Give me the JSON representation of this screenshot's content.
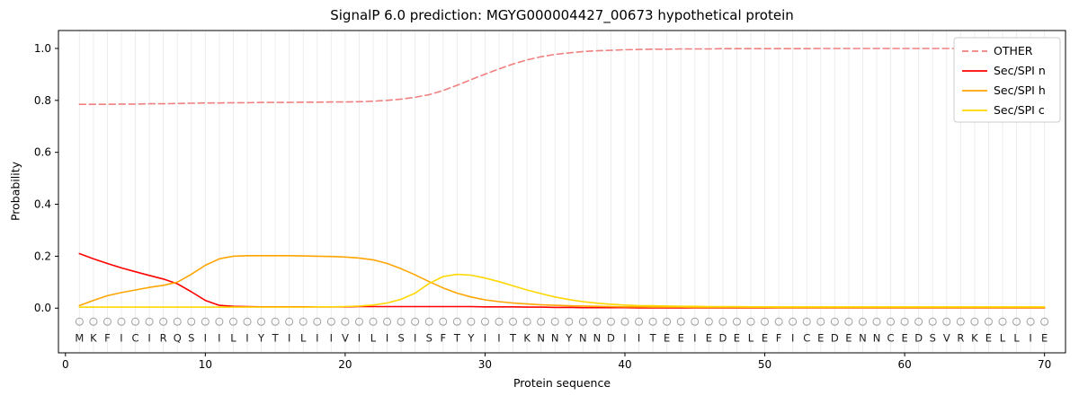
{
  "chart_data": {
    "type": "line",
    "title": "SignalP 6.0 prediction: MGYG000004427_00673 hypothetical protein",
    "xlabel": "Protein sequence",
    "ylabel": "Probability",
    "sequence": "MKFICIRQSIILIYTILIIVILISISFTYIITKNNYNNDIITEEIEDELEFICEDENNCEDSVRKELLIE",
    "xlim": [
      -0.5,
      71.5
    ],
    "ylim": [
      -0.172,
      1.069
    ],
    "grid": "vertical-per-residue",
    "legend_position": "top-right",
    "xticks": [
      {
        "v": 0,
        "label": "0"
      },
      {
        "v": 10,
        "label": "10"
      },
      {
        "v": 20,
        "label": "20"
      },
      {
        "v": 30,
        "label": "30"
      },
      {
        "v": 40,
        "label": "40"
      },
      {
        "v": 50,
        "label": "50"
      },
      {
        "v": 60,
        "label": "60"
      },
      {
        "v": 70,
        "label": "70"
      }
    ],
    "yticks": [
      {
        "v": 0.0,
        "label": "0.0"
      },
      {
        "v": 0.2,
        "label": "0.2"
      },
      {
        "v": 0.4,
        "label": "0.4"
      },
      {
        "v": 0.6,
        "label": "0.6"
      },
      {
        "v": 0.8,
        "label": "0.8"
      },
      {
        "v": 1.0,
        "label": "1.0"
      }
    ],
    "colors": {
      "grid": "#ececec",
      "marker": "#9e9e9e",
      "axis": "#000000",
      "legend_border": "#cccccc",
      "background": "#ffffff"
    },
    "series": [
      {
        "name": "OTHER",
        "color": "#f08080",
        "dashed": true,
        "values": [
          0.785,
          0.785,
          0.785,
          0.786,
          0.786,
          0.787,
          0.787,
          0.788,
          0.789,
          0.79,
          0.79,
          0.791,
          0.791,
          0.792,
          0.792,
          0.792,
          0.793,
          0.793,
          0.794,
          0.794,
          0.795,
          0.797,
          0.8,
          0.805,
          0.812,
          0.822,
          0.838,
          0.858,
          0.88,
          0.901,
          0.921,
          0.94,
          0.956,
          0.968,
          0.977,
          0.983,
          0.988,
          0.991,
          0.993,
          0.995,
          0.996,
          0.997,
          0.997,
          0.998,
          0.998,
          0.998,
          0.999,
          0.999,
          0.999,
          0.999,
          0.999,
          0.999,
          0.999,
          1.0,
          1.0,
          1.0,
          1.0,
          1.0,
          1.0,
          1.0,
          1.0,
          1.0,
          1.0,
          1.0,
          1.0,
          1.0,
          1.0,
          1.0,
          1.0,
          1.0
        ]
      },
      {
        "name": "Sec/SPI n",
        "color": "#ff0000",
        "dashed": false,
        "values": [
          0.21,
          0.19,
          0.172,
          0.155,
          0.14,
          0.126,
          0.112,
          0.094,
          0.063,
          0.03,
          0.011,
          0.007,
          0.006,
          0.005,
          0.005,
          0.005,
          0.005,
          0.005,
          0.005,
          0.005,
          0.006,
          0.006,
          0.006,
          0.006,
          0.006,
          0.006,
          0.006,
          0.006,
          0.006,
          0.005,
          0.005,
          0.005,
          0.004,
          0.004,
          0.003,
          0.003,
          0.002,
          0.002,
          0.002,
          0.002,
          0.001,
          0.001,
          0.001,
          0.001,
          0.001,
          0.001,
          0.001,
          0.001,
          0.001,
          0.001,
          0.001,
          0.001,
          0.001,
          0.001,
          0.001,
          0.001,
          0.001,
          0.001,
          0.001,
          0.001,
          0.001,
          0.001,
          0.001,
          0.001,
          0.001,
          0.001,
          0.001,
          0.001,
          0.001,
          0.001
        ]
      },
      {
        "name": "Sec/SPI h",
        "color": "#ffa500",
        "dashed": false,
        "values": [
          0.01,
          0.03,
          0.048,
          0.06,
          0.07,
          0.08,
          0.088,
          0.1,
          0.13,
          0.165,
          0.19,
          0.2,
          0.202,
          0.202,
          0.202,
          0.202,
          0.201,
          0.2,
          0.199,
          0.197,
          0.193,
          0.186,
          0.172,
          0.152,
          0.128,
          0.102,
          0.078,
          0.058,
          0.043,
          0.032,
          0.025,
          0.02,
          0.016,
          0.013,
          0.011,
          0.009,
          0.008,
          0.007,
          0.006,
          0.005,
          0.005,
          0.004,
          0.004,
          0.004,
          0.003,
          0.003,
          0.003,
          0.003,
          0.003,
          0.003,
          0.002,
          0.002,
          0.002,
          0.002,
          0.002,
          0.002,
          0.002,
          0.002,
          0.002,
          0.002,
          0.002,
          0.002,
          0.002,
          0.002,
          0.002,
          0.002,
          0.002,
          0.002,
          0.002,
          0.002
        ]
      },
      {
        "name": "Sec/SPI c",
        "color": "#ffd700",
        "dashed": false,
        "values": [
          0.004,
          0.004,
          0.004,
          0.004,
          0.004,
          0.004,
          0.004,
          0.004,
          0.004,
          0.004,
          0.004,
          0.004,
          0.004,
          0.004,
          0.004,
          0.004,
          0.004,
          0.005,
          0.005,
          0.006,
          0.008,
          0.012,
          0.02,
          0.034,
          0.058,
          0.095,
          0.122,
          0.13,
          0.127,
          0.116,
          0.102,
          0.086,
          0.07,
          0.056,
          0.043,
          0.033,
          0.025,
          0.019,
          0.015,
          0.012,
          0.01,
          0.009,
          0.008,
          0.007,
          0.007,
          0.006,
          0.006,
          0.006,
          0.005,
          0.005,
          0.005,
          0.005,
          0.005,
          0.005,
          0.005,
          0.005,
          0.005,
          0.005,
          0.005,
          0.005,
          0.005,
          0.005,
          0.005,
          0.005,
          0.005,
          0.005,
          0.005,
          0.005,
          0.005,
          0.005
        ]
      }
    ]
  }
}
